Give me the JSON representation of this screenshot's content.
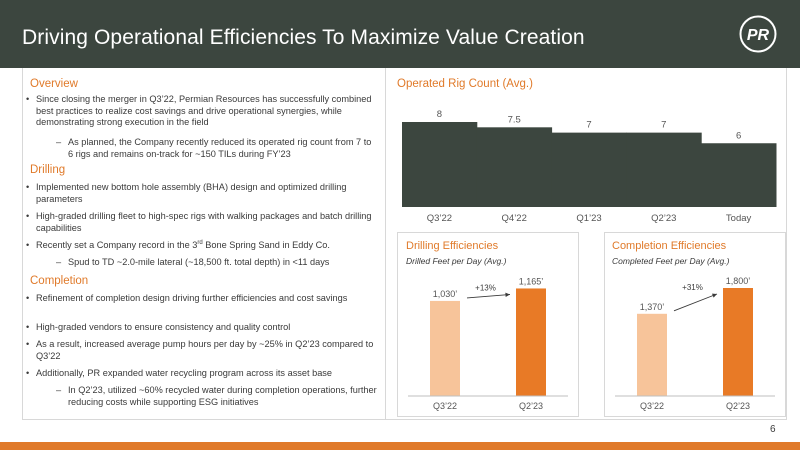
{
  "header": {
    "title": "Driving Operational Efficiencies To Maximize Value Creation",
    "logo_text": "PR"
  },
  "page_number": "6",
  "left": {
    "overview_heading": "Overview",
    "overview_b1": "Since closing the merger in Q3’22, Permian Resources has successfully combined best practices to realize cost savings and drive operational synergies, while demonstrating strong execution in the field",
    "overview_b1_sub": "As planned, the Company recently reduced its operated rig count from 7 to 6 rigs and remains on-track for ~150 TILs during FY’23",
    "drilling_heading": "Drilling",
    "drilling_b1": "Implemented new bottom hole assembly (BHA) design and optimized drilling parameters",
    "drilling_b2": "High-graded drilling fleet to high-spec rigs with walking packages and batch drilling capabilities",
    "drilling_b3_pre": "Recently set a Company record in the 3",
    "drilling_b3_sup": "rd",
    "drilling_b3_post": " Bone Spring Sand in Eddy Co.",
    "drilling_b3_sub": "Spud to TD ~2.0-mile lateral (~18,500 ft. total depth) in <11 days",
    "completion_heading": "Completion",
    "completion_b1": "Refinement of completion design driving further efficiencies and cost savings",
    "completion_b2": "High-graded vendors to ensure consistency and quality control",
    "completion_b3": "As a result, increased average pump hours per day by ~25% in Q2’23 compared to Q3’22",
    "completion_b4": "Additionally, PR expanded water recycling program across its asset base",
    "completion_b4_sub": "In Q2’23, utilized ~60% recycled water during completion operations, further reducing costs while supporting ESG initiatives"
  },
  "chart_data": [
    {
      "type": "area",
      "title": "Operated Rig Count (Avg.)",
      "categories": [
        "Q3’22",
        "Q4’22",
        "Q1’23",
        "Q2’23",
        "Today"
      ],
      "values": [
        8,
        7.5,
        7,
        7,
        6
      ],
      "labels": [
        "8",
        "7.5",
        "7",
        "7",
        "6"
      ],
      "color": "#3c463f"
    },
    {
      "type": "bar",
      "title": "Drilling Efficiencies",
      "subtitle": "Drilled Feet per Day (Avg.)",
      "categories": [
        "Q3’22",
        "Q2’23"
      ],
      "values": [
        1030,
        1165
      ],
      "labels": [
        "1,030’",
        "1,165’"
      ],
      "change": "+13%",
      "colors": [
        "#f7c49a",
        "#e87a26"
      ]
    },
    {
      "type": "bar",
      "title": "Completion Efficiencies",
      "subtitle": "Completed Feet per Day (Avg.)",
      "categories": [
        "Q3’22",
        "Q2’23"
      ],
      "values": [
        1370,
        1800
      ],
      "labels": [
        "1,370’",
        "1,800’"
      ],
      "change": "+31%",
      "colors": [
        "#f7c49a",
        "#e87a26"
      ]
    }
  ]
}
